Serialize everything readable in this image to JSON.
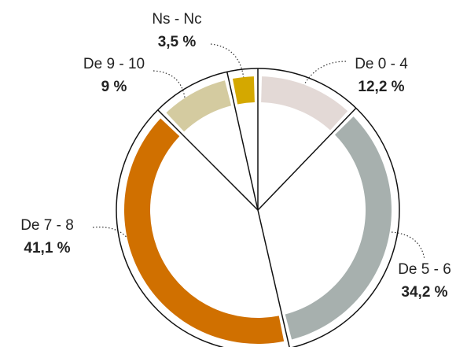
{
  "chart_data": {
    "type": "pie",
    "categories": [
      "De 0 - 4",
      "De 5 - 6",
      "De 7 - 8",
      "De 9 - 10",
      "Ns - Nc"
    ],
    "values": [
      12.2,
      34.2,
      41.1,
      9,
      3.5
    ],
    "value_labels": [
      "12,2 %",
      "34,2 %",
      "41,1 %",
      "9 %",
      "3,5 %"
    ],
    "colors": [
      "#e3d9d6",
      "#a7b0ae",
      "#d07000",
      "#d4cba0",
      "#d4a800"
    ]
  }
}
